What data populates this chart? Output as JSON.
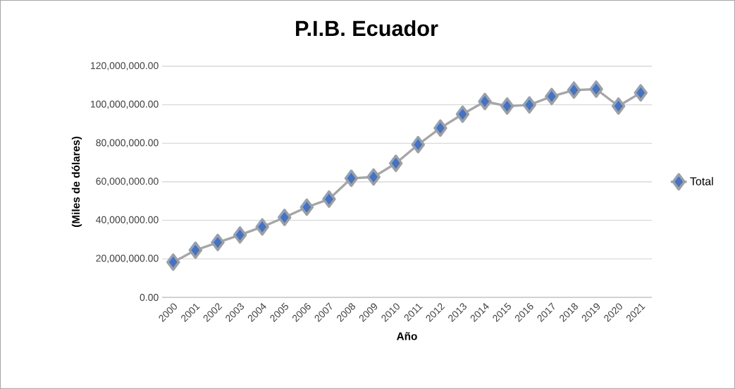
{
  "chart_data": {
    "type": "line",
    "title": "P.I.B. Ecuador",
    "xlabel": "Año",
    "ylabel": "(Miles de dólares)",
    "categories": [
      "2000",
      "2001",
      "2002",
      "2003",
      "2004",
      "2005",
      "2006",
      "2007",
      "2008",
      "2009",
      "2010",
      "2011",
      "2012",
      "2013",
      "2014",
      "2015",
      "2016",
      "2017",
      "2018",
      "2019",
      "2020",
      "2021"
    ],
    "series": [
      {
        "name": "Total",
        "color": "#4472c4",
        "values": [
          18300000,
          24500000,
          28500000,
          32400000,
          36600000,
          41500000,
          46800000,
          51000000,
          61800000,
          62500000,
          69600000,
          79300000,
          87900000,
          95100000,
          101700000,
          99300000,
          99900000,
          104300000,
          107600000,
          108100000,
          99300000,
          106200000
        ]
      }
    ],
    "ylim": [
      0,
      120000000
    ],
    "yticks": [
      {
        "value": 0,
        "label": "0.00"
      },
      {
        "value": 20000000,
        "label": "20,000,000.00"
      },
      {
        "value": 40000000,
        "label": "40,000,000.00"
      },
      {
        "value": 60000000,
        "label": "60,000,000.00"
      },
      {
        "value": 80000000,
        "label": "80,000,000.00"
      },
      {
        "value": 100000000,
        "label": "100,000,000.00"
      },
      {
        "value": 120000000,
        "label": "120,000,000.00"
      }
    ],
    "grid": "y",
    "legend": "right",
    "marker": "diamond",
    "line_style": "solid"
  }
}
